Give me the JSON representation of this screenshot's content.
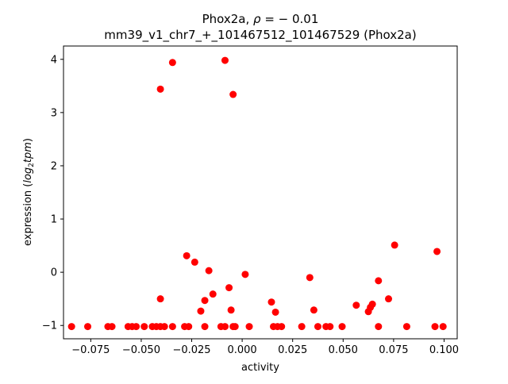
{
  "chart_data": {
    "type": "scatter",
    "title_line1_prefix": "Phox2a, ",
    "title_line1_rho": "ρ",
    "title_line1_suffix": " = − 0.01",
    "title_line2": "mm39_v1_chr7_+_101467512_101467529 (Phox2a)",
    "xlabel": "activity",
    "ylabel_prefix": "expression (",
    "ylabel_math": "log",
    "ylabel_sub": "2",
    "ylabel_math2": "tpm",
    "ylabel_suffix": ")",
    "xlim": [
      -0.0885,
      0.1065
    ],
    "ylim": [
      -1.25,
      4.25
    ],
    "xticks": [
      -0.075,
      -0.05,
      -0.025,
      0.0,
      0.025,
      0.05,
      0.075,
      0.1
    ],
    "xtick_labels": [
      "−0.075",
      "−0.050",
      "−0.025",
      "0.000",
      "0.025",
      "0.050",
      "0.075",
      "0.100"
    ],
    "yticks": [
      -1,
      0,
      1,
      2,
      3,
      4
    ],
    "ytick_labels": [
      "−1",
      "0",
      "1",
      "2",
      "3",
      "4"
    ],
    "grid": false,
    "marker_color": "#ff0000",
    "points": [
      {
        "x": -0.0845,
        "y": -1.02
      },
      {
        "x": -0.0765,
        "y": -1.02
      },
      {
        "x": -0.0665,
        "y": -1.02
      },
      {
        "x": -0.0645,
        "y": -1.02
      },
      {
        "x": -0.0565,
        "y": -1.02
      },
      {
        "x": -0.0545,
        "y": -1.02
      },
      {
        "x": -0.0525,
        "y": -1.02
      },
      {
        "x": -0.0485,
        "y": -1.02
      },
      {
        "x": -0.0445,
        "y": -1.02
      },
      {
        "x": -0.0425,
        "y": -1.02
      },
      {
        "x": -0.0405,
        "y": -1.02
      },
      {
        "x": -0.0385,
        "y": -1.02
      },
      {
        "x": -0.0345,
        "y": -1.02
      },
      {
        "x": -0.0285,
        "y": -1.02
      },
      {
        "x": -0.0265,
        "y": -1.02
      },
      {
        "x": -0.0185,
        "y": -1.02
      },
      {
        "x": -0.0105,
        "y": -1.02
      },
      {
        "x": -0.0085,
        "y": -1.02
      },
      {
        "x": -0.0045,
        "y": -1.02
      },
      {
        "x": -0.0035,
        "y": -1.02
      },
      {
        "x": 0.0035,
        "y": -1.02
      },
      {
        "x": 0.0155,
        "y": -1.02
      },
      {
        "x": 0.0175,
        "y": -1.02
      },
      {
        "x": 0.0195,
        "y": -1.02
      },
      {
        "x": 0.0295,
        "y": -1.02
      },
      {
        "x": 0.0375,
        "y": -1.02
      },
      {
        "x": 0.0415,
        "y": -1.02
      },
      {
        "x": 0.0435,
        "y": -1.02
      },
      {
        "x": 0.0495,
        "y": -1.02
      },
      {
        "x": 0.0675,
        "y": -1.02
      },
      {
        "x": 0.0815,
        "y": -1.02
      },
      {
        "x": 0.0955,
        "y": -1.02
      },
      {
        "x": 0.0995,
        "y": -1.02
      },
      {
        "x": -0.0205,
        "y": -0.73
      },
      {
        "x": 0.0625,
        "y": -0.74
      },
      {
        "x": 0.0165,
        "y": -0.75
      },
      {
        "x": -0.0055,
        "y": -0.71
      },
      {
        "x": 0.0355,
        "y": -0.71
      },
      {
        "x": 0.0635,
        "y": -0.66
      },
      {
        "x": 0.0645,
        "y": -0.6
      },
      {
        "x": 0.0565,
        "y": -0.62
      },
      {
        "x": 0.0145,
        "y": -0.56
      },
      {
        "x": -0.0405,
        "y": -0.5
      },
      {
        "x": -0.0185,
        "y": -0.53
      },
      {
        "x": 0.0725,
        "y": -0.5
      },
      {
        "x": -0.0145,
        "y": -0.41
      },
      {
        "x": -0.0065,
        "y": -0.29
      },
      {
        "x": 0.0675,
        "y": -0.16
      },
      {
        "x": 0.0335,
        "y": -0.1
      },
      {
        "x": 0.0015,
        "y": -0.04
      },
      {
        "x": -0.0165,
        "y": 0.03
      },
      {
        "x": -0.0235,
        "y": 0.19
      },
      {
        "x": -0.0275,
        "y": 0.31
      },
      {
        "x": 0.0965,
        "y": 0.39
      },
      {
        "x": 0.0755,
        "y": 0.51
      },
      {
        "x": -0.0405,
        "y": 3.44
      },
      {
        "x": -0.0345,
        "y": 3.94
      },
      {
        "x": -0.0085,
        "y": 3.98
      },
      {
        "x": -0.0045,
        "y": 3.34
      }
    ]
  }
}
